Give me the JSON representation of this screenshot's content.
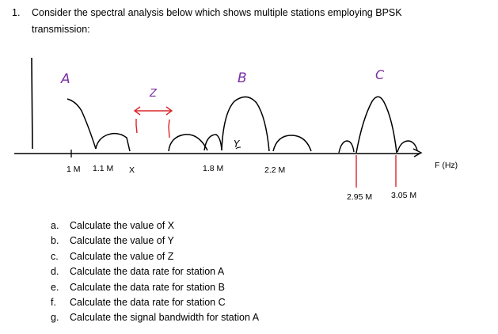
{
  "question": {
    "number": "1.",
    "text_line1": "Consider the spectral analysis below which shows multiple stations employing BPSK",
    "text_line2": "transmission:"
  },
  "diagram": {
    "handwritten_labels": {
      "A": "A",
      "Z": "Z",
      "B": "B",
      "Y": "Y",
      "C": "C"
    },
    "axis_labels": {
      "label_1m": "1 M",
      "label_1_1m": "1.1 M",
      "label_x": "X",
      "label_1_8m": "1.8 M",
      "label_2_2m": "2.2 M",
      "label_2_95m": "2.95 M",
      "label_3_05m": "3.05 M",
      "freq_axis": "F (Hz)"
    },
    "colors": {
      "ink": "#000000",
      "handwriting_purple": "#7b2fa3",
      "marker_red": "#d9262c"
    }
  },
  "parts": [
    {
      "letter": "a.",
      "text": "Calculate the value of X"
    },
    {
      "letter": "b.",
      "text": "Calculate the value of Y"
    },
    {
      "letter": "c.",
      "text": "Calculate the value of Z"
    },
    {
      "letter": "d.",
      "text": "Calculate the data rate for station A"
    },
    {
      "letter": "e.",
      "text": "Calculate the data rate for station B"
    },
    {
      "letter": "f.",
      "text": "Calculate the data rate for station C"
    },
    {
      "letter": "g.",
      "text": "Calculate the signal bandwidth for station A"
    }
  ]
}
